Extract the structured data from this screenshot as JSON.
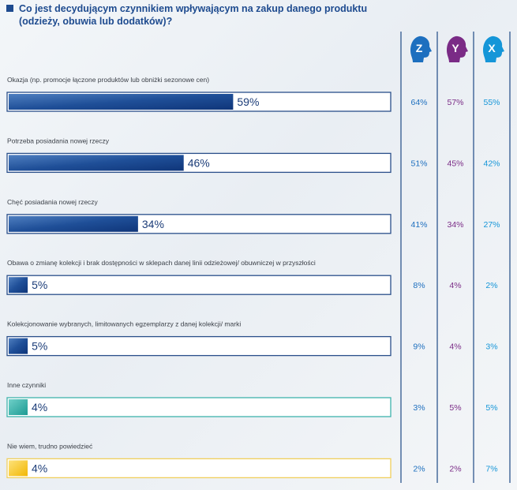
{
  "chart_data": {
    "type": "bar",
    "title_line1": "Co jest decydującym czynnikiem wpływającym na zakup danego produktu",
    "title_line2": "(odzieży, obuwia lub dodatków)?",
    "generations": [
      {
        "letter": "Z",
        "color": "#1d6fbf"
      },
      {
        "letter": "Y",
        "color": "#7a2b86"
      },
      {
        "letter": "X",
        "color": "#1596d8"
      }
    ],
    "categories": [
      "Okazja (np. promocje łączone produktów lub obniżki sezonowe cen)",
      "Potrzeba posiadania nowej rzeczy",
      "Chęć posiadania nowej rzeczy",
      "Obawa o zmianę kolekcji i brak dostępności w sklepach danej linii odzieżowej/ obuwniczej w przyszłości",
      "Kolekcjonowanie wybranych, limitowanych egzemplarzy z danej kolekcji/ marki",
      "Inne czynniki",
      "Nie wiem, trudno powiedzieć"
    ],
    "values": [
      59,
      46,
      34,
      5,
      5,
      4,
      4
    ],
    "value_labels": [
      "59%",
      "46%",
      "34%",
      "5%",
      "5%",
      "4%",
      "4%"
    ],
    "series": [
      {
        "name": "Z",
        "values": [
          64,
          51,
          41,
          8,
          9,
          3,
          2
        ],
        "labels": [
          "64%",
          "51%",
          "41%",
          "8%",
          "9%",
          "3%",
          "2%"
        ]
      },
      {
        "name": "Y",
        "values": [
          57,
          45,
          34,
          4,
          4,
          5,
          2
        ],
        "labels": [
          "57%",
          "45%",
          "34%",
          "4%",
          "4%",
          "5%",
          "2%"
        ]
      },
      {
        "name": "X",
        "values": [
          55,
          42,
          27,
          2,
          3,
          5,
          7
        ],
        "labels": [
          "55%",
          "42%",
          "27%",
          "2%",
          "3%",
          "5%",
          "7%"
        ]
      }
    ],
    "bar_styles": [
      "navy",
      "navy",
      "navy",
      "navy",
      "navy",
      "teal",
      "yellow"
    ],
    "xlim": [
      0,
      100
    ]
  },
  "colors": {
    "title": "#1e4b8f",
    "bar_dark": "#123f87",
    "bar_light": "#4f7fc0",
    "bar_border": "#2a4f8a",
    "teal": "#2aa7a0",
    "teal_border": "#3fb3ac",
    "yellow": "#f5c518",
    "yellow_border": "#f0cf5c",
    "z_text": "#1d6fbf",
    "y_text": "#7a2b86",
    "x_text": "#1596d8",
    "column_line": "#1f4a86"
  }
}
